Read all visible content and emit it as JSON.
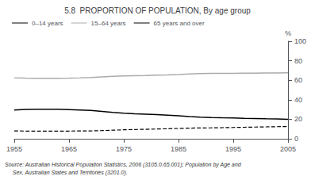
{
  "chart_data": {
    "type": "line",
    "title": "5.8  PROPORTION OF POPULATION, By age group",
    "ylabel": "%",
    "annotations": [
      "Source: Australian Historical Population Statistics, 2006 (3105.0.65.001); Population by Age and",
      "     Sex, Australian States and Territories (3201.0)."
    ],
    "x": [
      1955,
      1957,
      1959,
      1961,
      1963,
      1965,
      1967,
      1969,
      1971,
      1973,
      1975,
      1977,
      1979,
      1981,
      1983,
      1985,
      1987,
      1989,
      1991,
      1993,
      1995,
      1997,
      1999,
      2001,
      2003,
      2005
    ],
    "series": [
      {
        "name": "0–14 years",
        "color": "#000000",
        "line_style": "solid",
        "values": [
          29.5,
          30.0,
          30.2,
          30.3,
          30.2,
          29.9,
          29.5,
          29.0,
          28.1,
          27.1,
          26.2,
          25.6,
          25.2,
          24.8,
          24.2,
          23.5,
          22.8,
          22.2,
          21.8,
          21.5,
          21.3,
          21.0,
          20.8,
          20.5,
          20.3,
          20.0
        ]
      },
      {
        "name": "15–64 years",
        "color": "#aaaaaa",
        "line_style": "solid",
        "values": [
          62.5,
          62.2,
          62.0,
          61.9,
          62.0,
          62.2,
          62.5,
          62.9,
          63.5,
          64.0,
          64.4,
          64.7,
          64.9,
          65.2,
          65.5,
          65.9,
          66.4,
          66.8,
          67.0,
          67.1,
          67.1,
          67.2,
          67.3,
          67.4,
          67.5,
          67.6
        ]
      },
      {
        "name": "65 years and over",
        "color": "#000000",
        "line_style": "dashed",
        "values": [
          8.0,
          7.9,
          7.8,
          7.8,
          7.8,
          7.9,
          8.0,
          8.1,
          8.4,
          8.8,
          9.2,
          9.5,
          9.7,
          10.0,
          10.3,
          10.6,
          10.9,
          11.1,
          11.2,
          11.4,
          11.6,
          11.8,
          12.0,
          12.2,
          12.4,
          12.6
        ]
      }
    ],
    "xlim": [
      1955,
      2005
    ],
    "xticks": [
      1955,
      1965,
      1975,
      1985,
      1995,
      2005
    ],
    "ylim": [
      0,
      100
    ],
    "yticks": [
      0,
      20,
      40,
      60,
      80,
      100
    ],
    "grid": false,
    "legend": "upper left"
  }
}
